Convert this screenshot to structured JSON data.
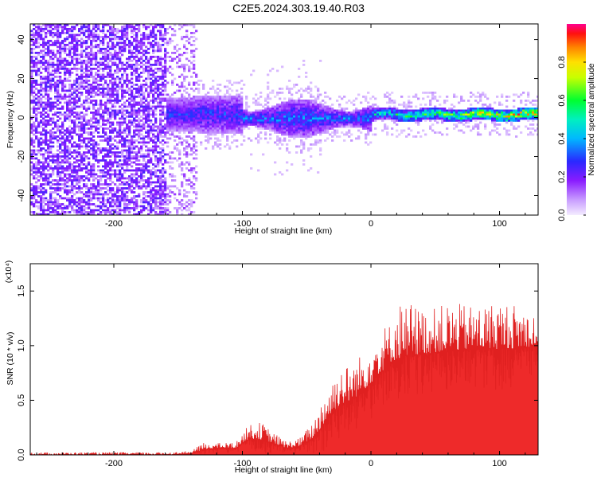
{
  "title": "C2E5.2024.303.19.40.R03",
  "chart_data": [
    {
      "type": "heatmap",
      "xlabel": "Height of straight line (km)",
      "ylabel": "Frequency (Hz)",
      "xlim": [
        -265,
        130
      ],
      "ylim": [
        -50,
        48
      ],
      "x_ticks": [
        "-200",
        "-100",
        "0",
        "100"
      ],
      "y_ticks": [
        "40",
        "20",
        "0",
        "-20",
        "-40"
      ],
      "colorbar": {
        "label": "Normalized spectral amplitude",
        "range": [
          0.0,
          1.0
        ],
        "ticks": [
          "0.0",
          "0.2",
          "0.4",
          "0.6",
          "0.8"
        ],
        "colors": [
          "#f2eaff",
          "#d8b8ff",
          "#9b30ff",
          "#2030ff",
          "#00e0ff",
          "#00ff40",
          "#ffff00",
          "#ff8000",
          "#ff0000",
          "#ff0080"
        ]
      },
      "regions": [
        {
          "x": [
            -265,
            -140
          ],
          "description_value": 0.18,
          "spread_hz": [
            -50,
            48
          ]
        },
        {
          "x": [
            -160,
            -100
          ],
          "center_hz": 2,
          "half_width_hz": 10,
          "peak": 0.3
        },
        {
          "x": [
            -100,
            0
          ],
          "center_hz": 0,
          "half_width_hz": 7,
          "peak": 0.35
        },
        {
          "x": [
            0,
            130
          ],
          "center_hz": 2,
          "half_width_hz": 3,
          "peak": 0.95
        }
      ]
    },
    {
      "type": "line",
      "xlabel": "Height of straight line (km)",
      "ylabel": "SNR (10 * v/v)",
      "y_exponent": "(x10⁴)",
      "xlim": [
        -265,
        130
      ],
      "ylim": [
        0,
        1.75
      ],
      "x_ticks": [
        "-200",
        "-100",
        "0",
        "100"
      ],
      "y_ticks": [
        "0.0",
        "0.5",
        "1.0",
        "1.5"
      ],
      "color": "#ee2a2a",
      "envelope": {
        "x": [
          -265,
          -160,
          -140,
          -130,
          -120,
          -105,
          -95,
          -85,
          -75,
          -65,
          -55,
          -45,
          -35,
          -25,
          -15,
          -5,
          5,
          15,
          25,
          35,
          45,
          60,
          80,
          100,
          120,
          130
        ],
        "base": [
          0.0,
          0.0,
          0.01,
          0.05,
          0.06,
          0.06,
          0.15,
          0.14,
          0.1,
          0.06,
          0.08,
          0.15,
          0.3,
          0.45,
          0.5,
          0.6,
          0.72,
          0.85,
          0.9,
          0.92,
          0.93,
          0.95,
          0.97,
          0.97,
          0.98,
          1.0
        ],
        "amp": [
          0.03,
          0.03,
          0.03,
          0.08,
          0.06,
          0.07,
          0.16,
          0.2,
          0.12,
          0.08,
          0.1,
          0.2,
          0.4,
          0.45,
          0.42,
          0.45,
          0.55,
          0.45,
          0.7,
          0.55,
          0.5,
          0.55,
          0.5,
          0.55,
          0.48,
          0.4
        ]
      }
    }
  ]
}
